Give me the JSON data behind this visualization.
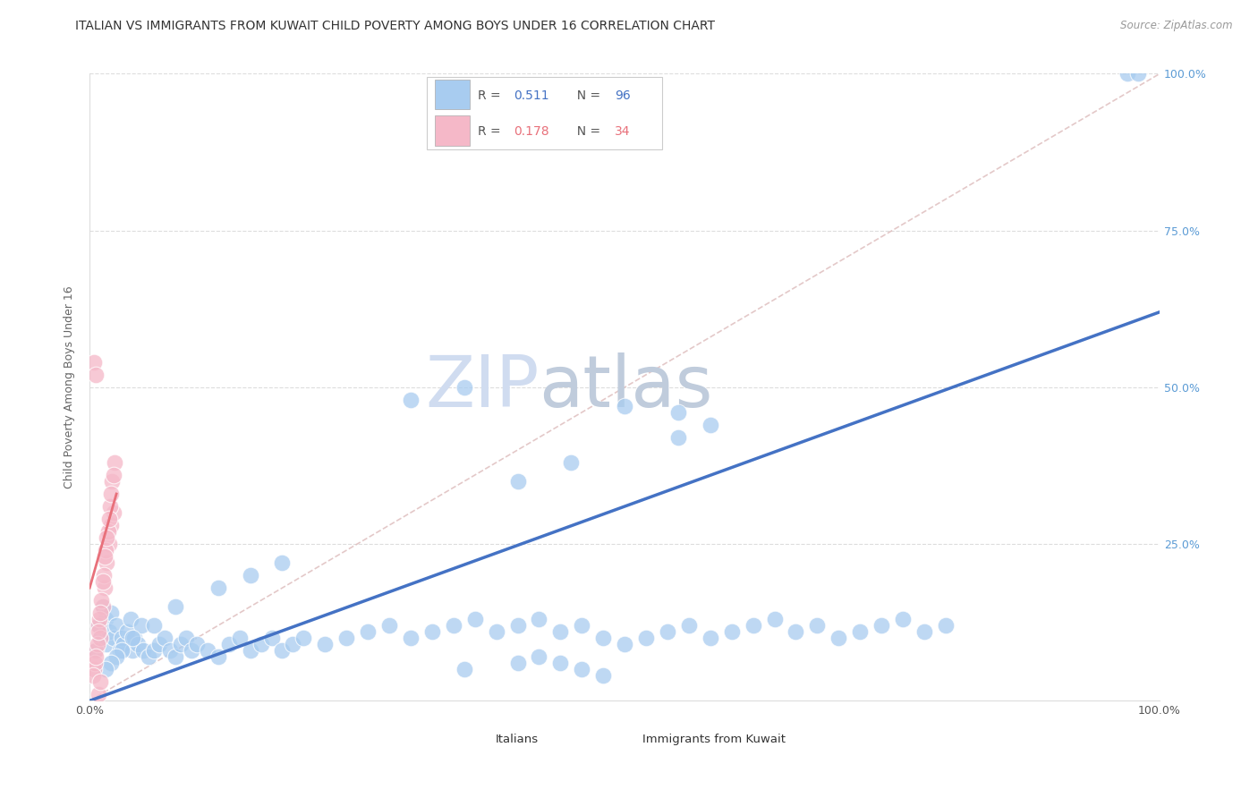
{
  "title": "ITALIAN VS IMMIGRANTS FROM KUWAIT CHILD POVERTY AMONG BOYS UNDER 16 CORRELATION CHART",
  "source": "Source: ZipAtlas.com",
  "ylabel": "Child Poverty Among Boys Under 16",
  "legend_blue_R": "0.511",
  "legend_blue_N": "96",
  "legend_pink_R": "0.178",
  "legend_pink_N": "34",
  "legend_label_blue": "Italians",
  "legend_label_pink": "Immigrants from Kuwait",
  "watermark_zip": "ZIP",
  "watermark_atlas": "atlas",
  "blue_color": "#A8CCF0",
  "pink_color": "#F5B8C8",
  "blue_line_color": "#4472C4",
  "pink_line_color": "#E8707A",
  "diag_color": "#DDBBBB",
  "right_tick_color": "#5B9BD5",
  "background_color": "#FFFFFF",
  "seed": 42,
  "N_blue": 96,
  "N_pink": 34,
  "R_blue": 0.511,
  "R_pink": 0.178,
  "blue_x": [
    0.005,
    0.008,
    0.01,
    0.012,
    0.015,
    0.016,
    0.018,
    0.02,
    0.022,
    0.025,
    0.028,
    0.03,
    0.032,
    0.035,
    0.038,
    0.04,
    0.042,
    0.045,
    0.048,
    0.05,
    0.055,
    0.06,
    0.065,
    0.07,
    0.075,
    0.08,
    0.085,
    0.09,
    0.095,
    0.1,
    0.11,
    0.12,
    0.13,
    0.14,
    0.15,
    0.16,
    0.17,
    0.18,
    0.19,
    0.2,
    0.22,
    0.24,
    0.26,
    0.28,
    0.3,
    0.32,
    0.34,
    0.36,
    0.38,
    0.4,
    0.42,
    0.44,
    0.46,
    0.48,
    0.5,
    0.52,
    0.54,
    0.56,
    0.58,
    0.6,
    0.62,
    0.64,
    0.66,
    0.68,
    0.7,
    0.72,
    0.74,
    0.76,
    0.78,
    0.8,
    0.55,
    0.58,
    0.3,
    0.35,
    0.4,
    0.45,
    0.5,
    0.55,
    0.97,
    0.98,
    0.15,
    0.18,
    0.12,
    0.08,
    0.06,
    0.04,
    0.03,
    0.025,
    0.02,
    0.015,
    0.35,
    0.4,
    0.42,
    0.44,
    0.46,
    0.48
  ],
  "blue_y": [
    0.08,
    0.12,
    0.1,
    0.15,
    0.13,
    0.09,
    0.11,
    0.14,
    0.1,
    0.12,
    0.08,
    0.1,
    0.09,
    0.11,
    0.13,
    0.08,
    0.1,
    0.09,
    0.12,
    0.08,
    0.07,
    0.08,
    0.09,
    0.1,
    0.08,
    0.07,
    0.09,
    0.1,
    0.08,
    0.09,
    0.08,
    0.07,
    0.09,
    0.1,
    0.08,
    0.09,
    0.1,
    0.08,
    0.09,
    0.1,
    0.09,
    0.1,
    0.11,
    0.12,
    0.1,
    0.11,
    0.12,
    0.13,
    0.11,
    0.12,
    0.13,
    0.11,
    0.12,
    0.1,
    0.09,
    0.1,
    0.11,
    0.12,
    0.1,
    0.11,
    0.12,
    0.13,
    0.11,
    0.12,
    0.1,
    0.11,
    0.12,
    0.13,
    0.11,
    0.12,
    0.42,
    0.44,
    0.48,
    0.5,
    0.35,
    0.38,
    0.47,
    0.46,
    1.0,
    1.0,
    0.2,
    0.22,
    0.18,
    0.15,
    0.12,
    0.1,
    0.08,
    0.07,
    0.06,
    0.05,
    0.05,
    0.06,
    0.07,
    0.06,
    0.05,
    0.04
  ],
  "pink_x": [
    0.004,
    0.006,
    0.008,
    0.01,
    0.012,
    0.014,
    0.016,
    0.018,
    0.02,
    0.022,
    0.005,
    0.007,
    0.009,
    0.011,
    0.013,
    0.015,
    0.017,
    0.019,
    0.021,
    0.023,
    0.003,
    0.006,
    0.008,
    0.01,
    0.012,
    0.014,
    0.016,
    0.018,
    0.02,
    0.022,
    0.004,
    0.006,
    0.008,
    0.01
  ],
  "pink_y": [
    0.05,
    0.08,
    0.12,
    0.1,
    0.15,
    0.18,
    0.22,
    0.25,
    0.28,
    0.3,
    0.06,
    0.09,
    0.13,
    0.16,
    0.2,
    0.24,
    0.27,
    0.31,
    0.35,
    0.38,
    0.04,
    0.07,
    0.11,
    0.14,
    0.19,
    0.23,
    0.26,
    0.29,
    0.33,
    0.36,
    0.54,
    0.52,
    0.01,
    0.03
  ]
}
